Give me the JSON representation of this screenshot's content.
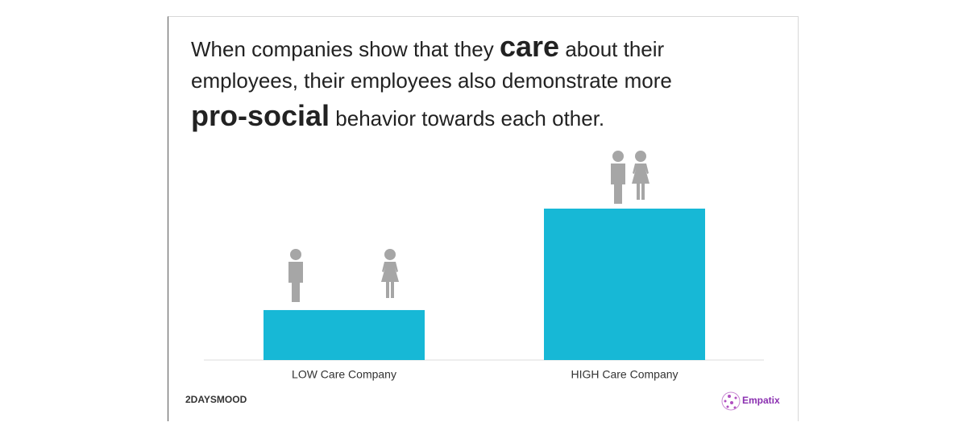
{
  "chart_data": {
    "type": "bar",
    "title_lines": [
      [
        {
          "text": "When companies show that they",
          "bold": false
        },
        {
          "text": "care",
          "bold": true
        },
        {
          "text": "about their",
          "bold": false
        }
      ],
      [
        {
          "text": "employees, their employees also demonstrate more",
          "bold": false
        }
      ],
      [
        {
          "text": "pro-social",
          "bold": true
        },
        {
          "text": "behavior towards each other.",
          "bold": false
        }
      ]
    ],
    "categories": [
      "LOW Care Company",
      "HIGH Care Company"
    ],
    "values": [
      33,
      100
    ],
    "color": "#17b8d6"
  },
  "logos": {
    "left": "2DAYSMOOD",
    "right": "Empatix"
  }
}
